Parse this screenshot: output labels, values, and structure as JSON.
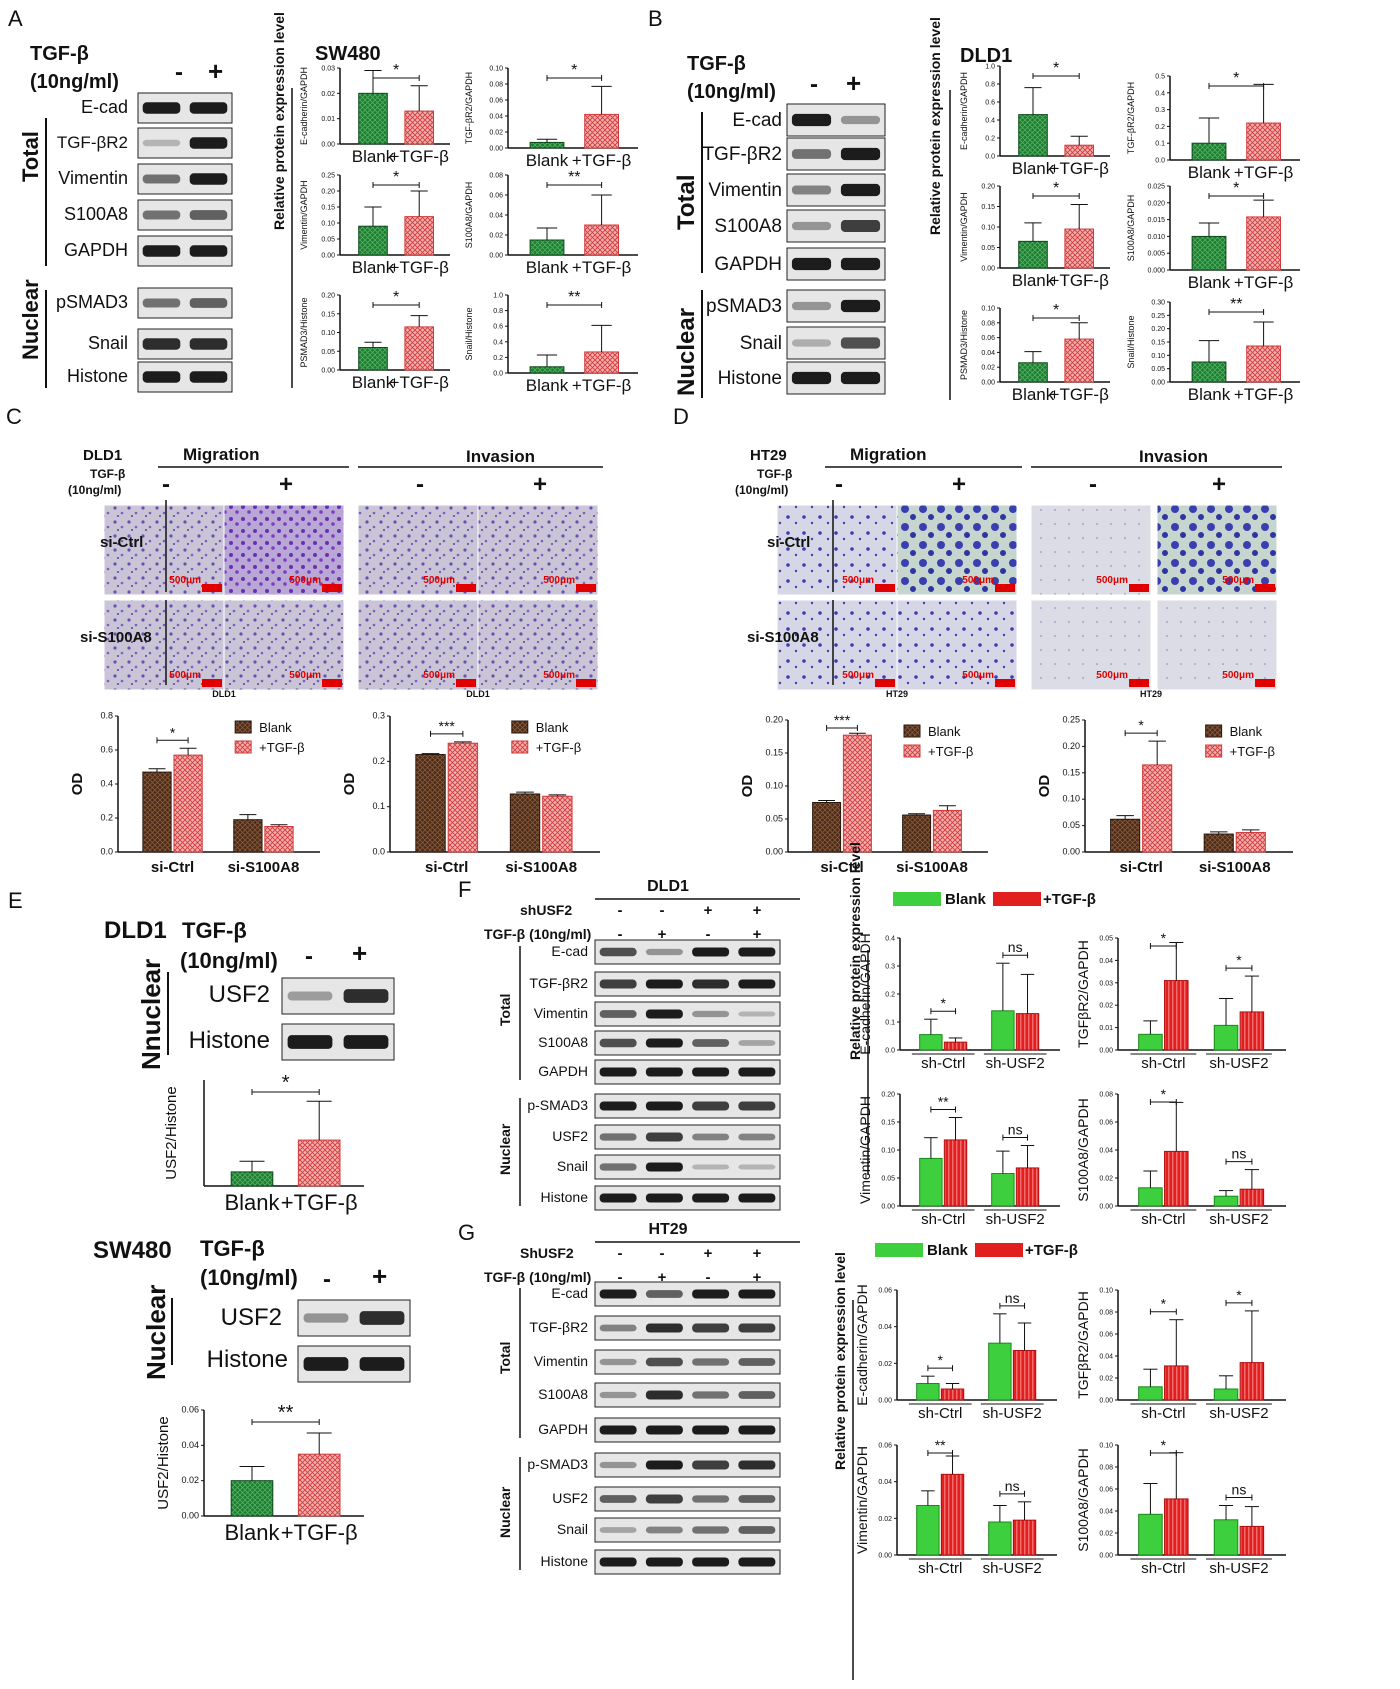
{
  "colors": {
    "blank_green": "#1f7a32",
    "tgf_red": "#e35a5a",
    "light_green": "#3ecf3e",
    "bright_red": "#e21f1f",
    "blank_brown": "#4a2c1a",
    "scale_red": "#e00000",
    "stain_purple": "#6a4fb5",
    "stain_blue": "#3a3fb0"
  },
  "panelA": {
    "label": "A",
    "treatment": "TGF-β",
    "dose": "(10ng/ml)",
    "minus": "-",
    "plus": "+",
    "group_total": "Total",
    "group_nuclear": "Nuclear",
    "blots": [
      "E-cad",
      "TGF-βR2",
      "Vimentin",
      "S100A8",
      "GAPDH",
      "pSMAD3",
      "Snail",
      "Histone"
    ],
    "cell_line": "SW480",
    "y_axis": "Relative protein expression level"
  },
  "panelB": {
    "label": "B",
    "treatment": "TGF-β",
    "dose": "(10ng/ml)",
    "minus": "-",
    "plus": "+",
    "group_total": "Total",
    "group_nuclear": "Nuclear",
    "blots": [
      "E-cad",
      "TGF-βR2",
      "Vimentin",
      "S100A8",
      "GAPDH",
      "pSMAD3",
      "Snail",
      "Histone"
    ],
    "cell_line": "DLD1",
    "y_axis": "Relative protein expression level"
  },
  "panelC": {
    "label": "C",
    "cell_line": "DLD1",
    "treatment": "TGF-β",
    "dose": "(10ng/ml)",
    "migration": "Migration",
    "invasion": "Invasion",
    "minus": "-",
    "plus": "+",
    "rows": [
      "si-Ctrl",
      "si-S100A8"
    ],
    "scale": "500μm",
    "caption": "DLD1"
  },
  "panelD": {
    "label": "D",
    "cell_line": "HT29",
    "treatment": "TGF-β",
    "dose": "(10ng/ml)",
    "migration": "Migration",
    "invasion": "Invasion",
    "minus": "-",
    "plus": "+",
    "rows": [
      "si-Ctrl",
      "si-S100A8"
    ],
    "scale": "500μm",
    "caption": "HT29"
  },
  "panelE": {
    "label": "E",
    "cell_line1": "DLD1",
    "cell_line2": "SW480",
    "treatment": "TGF-β",
    "dose": "(10ng/ml)",
    "minus": "-",
    "plus": "+",
    "group": "Nnuclear",
    "group2": "Nuclear",
    "blots": [
      "USF2",
      "Histone"
    ]
  },
  "panelF": {
    "label": "F",
    "cell_line": "DLD1",
    "sh_label": "shUSF2",
    "tgf_label": "TGF-β (10ng/ml)",
    "signs_sh": [
      "-",
      "-",
      "+",
      "+"
    ],
    "signs_tgf": [
      "-",
      "+",
      "-",
      "+"
    ],
    "group_total": "Total",
    "group_nuclear": "Nuclear",
    "blots": [
      "E-cad",
      "TGF-βR2",
      "Vimentin",
      "S100A8",
      "GAPDH",
      "p-SMAD3",
      "USF2",
      "Snail",
      "Histone"
    ],
    "legend_blank": "Blank",
    "legend_tgf": "+TGF-β",
    "y_axis": "Relative protein expression level"
  },
  "panelG": {
    "label": "G",
    "cell_line": "HT29",
    "sh_label": "ShUSF2",
    "tgf_label": "TGF-β (10ng/ml)",
    "signs_sh": [
      "-",
      "-",
      "+",
      "+"
    ],
    "signs_tgf": [
      "-",
      "+",
      "-",
      "+"
    ],
    "group_total": "Total",
    "group_nuclear": "Nuclear",
    "blots": [
      "E-cad",
      "TGF-βR2",
      "Vimentin",
      "S100A8",
      "GAPDH",
      "p-SMAD3",
      "USF2",
      "Snail",
      "Histone"
    ],
    "legend_blank": "Blank",
    "legend_tgf": "+TGF-β",
    "y_axis": "Relative protein expression level"
  },
  "chart_data": [
    {
      "id": "A-ecad",
      "type": "bar",
      "categories": [
        "Blank",
        "+TGF-β"
      ],
      "values": [
        0.02,
        0.013
      ],
      "errors": [
        0.009,
        0.01
      ],
      "ylabel": "E-cadherin/GAPDH",
      "ylim": [
        0,
        0.03
      ],
      "ticks": [
        "0.00",
        "0.01",
        "0.02",
        "0.03"
      ],
      "sig": "*"
    },
    {
      "id": "A-tgfbr2",
      "type": "bar",
      "categories": [
        "Blank",
        "+TGF-β"
      ],
      "values": [
        0.007,
        0.042
      ],
      "errors": [
        0.004,
        0.035
      ],
      "ylabel": "TGF-βR2/GAPDH",
      "ylim": [
        0,
        0.1
      ],
      "ticks": [
        "0.00",
        "0.02",
        "0.04",
        "0.06",
        "0.08",
        "0.10"
      ],
      "sig": "*"
    },
    {
      "id": "A-vim",
      "type": "bar",
      "categories": [
        "Blank",
        "+TGF-β"
      ],
      "values": [
        0.09,
        0.12
      ],
      "errors": [
        0.06,
        0.08
      ],
      "ylabel": "Vimentin/GAPDH",
      "ylim": [
        0,
        0.25
      ],
      "ticks": [
        "0.00",
        "0.05",
        "0.10",
        "0.15",
        "0.20",
        "0.25"
      ],
      "sig": "*"
    },
    {
      "id": "A-s100a8",
      "type": "bar",
      "categories": [
        "Blank",
        "+TGF-β"
      ],
      "values": [
        0.015,
        0.03
      ],
      "errors": [
        0.012,
        0.03
      ],
      "ylabel": "S100A8/GAPDH",
      "ylim": [
        0,
        0.08
      ],
      "ticks": [
        "0.00",
        "0.02",
        "0.04",
        "0.06",
        "0.08"
      ],
      "sig": "**"
    },
    {
      "id": "A-psmad3",
      "type": "bar",
      "categories": [
        "Blank",
        "+TGF-β"
      ],
      "values": [
        0.06,
        0.115
      ],
      "errors": [
        0.014,
        0.03
      ],
      "ylabel": "PSMAD3/Histone",
      "ylim": [
        0,
        0.2
      ],
      "ticks": [
        "0.00",
        "0.05",
        "0.10",
        "0.15",
        "0.20"
      ],
      "sig": "*"
    },
    {
      "id": "A-snail",
      "type": "bar",
      "categories": [
        "Blank",
        "+TGF-β"
      ],
      "values": [
        0.08,
        0.27
      ],
      "errors": [
        0.15,
        0.34
      ],
      "ylabel": "Snail/Histone",
      "ylim": [
        0,
        1.0
      ],
      "ticks": [
        "0.0",
        "0.2",
        "0.4",
        "0.6",
        "0.8",
        "1.0"
      ],
      "sig": "**"
    },
    {
      "id": "B-ecad",
      "type": "bar",
      "categories": [
        "Blank",
        "+TGF-β"
      ],
      "values": [
        0.46,
        0.12
      ],
      "errors": [
        0.3,
        0.1
      ],
      "ylabel": "E-cadherin/GAPDH",
      "ylim": [
        0,
        1.0
      ],
      "ticks": [
        "0.0",
        "0.2",
        "0.4",
        "0.6",
        "0.8",
        "1.0"
      ],
      "sig": "*"
    },
    {
      "id": "B-tgfbr2",
      "type": "bar",
      "categories": [
        "Blank",
        "+TGF-β"
      ],
      "values": [
        0.1,
        0.22
      ],
      "errors": [
        0.15,
        0.23
      ],
      "ylabel": "TGF-βR2/GAPDH",
      "ylim": [
        0,
        0.5
      ],
      "ticks": [
        "0.0",
        "0.1",
        "0.2",
        "0.3",
        "0.4",
        "0.5"
      ],
      "sig": "*"
    },
    {
      "id": "B-vim",
      "type": "bar",
      "categories": [
        "Blank",
        "+TGF-β"
      ],
      "values": [
        0.065,
        0.095
      ],
      "errors": [
        0.045,
        0.06
      ],
      "ylabel": "Vimentin/GAPDH",
      "ylim": [
        0,
        0.2
      ],
      "ticks": [
        "0.00",
        "0.05",
        "0.10",
        "0.15",
        "0.20"
      ],
      "sig": "*"
    },
    {
      "id": "B-s100a8",
      "type": "bar",
      "categories": [
        "Blank",
        "+TGF-β"
      ],
      "values": [
        0.01,
        0.0158
      ],
      "errors": [
        0.004,
        0.005
      ],
      "ylabel": "S100A8/GAPDH",
      "ylim": [
        0,
        0.025
      ],
      "ticks": [
        "0.000",
        "0.005",
        "0.010",
        "0.015",
        "0.020",
        "0.025"
      ],
      "sig": "*"
    },
    {
      "id": "B-psmad3",
      "type": "bar",
      "categories": [
        "Blank",
        "+TGF-β"
      ],
      "values": [
        0.026,
        0.058
      ],
      "errors": [
        0.015,
        0.022
      ],
      "ylabel": "PSMAD3/Histone",
      "ylim": [
        0,
        0.1
      ],
      "ticks": [
        "0.00",
        "0.02",
        "0.04",
        "0.06",
        "0.08",
        "0.10"
      ],
      "sig": "*"
    },
    {
      "id": "B-snail",
      "type": "bar",
      "categories": [
        "Blank",
        "+TGF-β"
      ],
      "values": [
        0.075,
        0.135
      ],
      "errors": [
        0.08,
        0.09
      ],
      "ylabel": "Snail/Histone",
      "ylim": [
        0,
        0.3
      ],
      "ticks": [
        "0.00",
        "0.05",
        "0.10",
        "0.15",
        "0.20",
        "0.25",
        "0.30"
      ],
      "sig": "**"
    },
    {
      "id": "C-mig",
      "type": "bar",
      "categories": [
        "si-Ctrl",
        "si-S100A8"
      ],
      "series": [
        {
          "name": "Blank",
          "values": [
            0.47,
            0.19
          ],
          "errors": [
            0.02,
            0.03
          ]
        },
        {
          "name": "+TGF-β",
          "values": [
            0.57,
            0.15
          ],
          "errors": [
            0.04,
            0.01
          ]
        }
      ],
      "ylabel": "OD",
      "ylim": [
        0,
        0.8
      ],
      "ticks": [
        "0.0",
        "0.2",
        "0.4",
        "0.6",
        "0.8"
      ],
      "sig": "*"
    },
    {
      "id": "C-inv",
      "type": "bar",
      "categories": [
        "si-Ctrl",
        "si-S100A8"
      ],
      "series": [
        {
          "name": "Blank",
          "values": [
            0.215,
            0.128
          ],
          "errors": [
            0.002,
            0.004
          ]
        },
        {
          "name": "+TGF-β",
          "values": [
            0.24,
            0.123
          ],
          "errors": [
            0.003,
            0.003
          ]
        }
      ],
      "ylabel": "OD",
      "ylim": [
        0,
        0.3
      ],
      "ticks": [
        "0.0",
        "0.1",
        "0.2",
        "0.3"
      ],
      "sig": "***"
    },
    {
      "id": "D-mig",
      "type": "bar",
      "categories": [
        "si-Ctrl",
        "si-S100A8"
      ],
      "series": [
        {
          "name": "Blank",
          "values": [
            0.075,
            0.056
          ],
          "errors": [
            0.003,
            0.002
          ]
        },
        {
          "name": "+TGF-β",
          "values": [
            0.177,
            0.063
          ],
          "errors": [
            0.003,
            0.007
          ]
        }
      ],
      "ylabel": "OD",
      "ylim": [
        0,
        0.2
      ],
      "ticks": [
        "0.00",
        "0.05",
        "0.10",
        "0.15",
        "0.20"
      ],
      "sig": "***"
    },
    {
      "id": "D-inv",
      "type": "bar",
      "categories": [
        "si-Ctrl",
        "si-S100A8"
      ],
      "series": [
        {
          "name": "Blank",
          "values": [
            0.062,
            0.034
          ],
          "errors": [
            0.007,
            0.004
          ]
        },
        {
          "name": "+TGF-β",
          "values": [
            0.165,
            0.037
          ],
          "errors": [
            0.045,
            0.005
          ]
        }
      ],
      "ylabel": "OD",
      "ylim": [
        0,
        0.25
      ],
      "ticks": [
        "0.00",
        "0.05",
        "0.10",
        "0.15",
        "0.20",
        "0.25"
      ],
      "sig": "*"
    },
    {
      "id": "E-dld1",
      "type": "bar",
      "categories": [
        "Blank",
        "+TGF-β"
      ],
      "values": [
        0.08,
        0.26
      ],
      "errors": [
        0.06,
        0.22
      ],
      "ylabel": "USF2/Histone",
      "ylim": [
        0,
        0.6
      ],
      "ticks": [],
      "sig": "*"
    },
    {
      "id": "E-sw480",
      "type": "bar",
      "categories": [
        "Blank",
        "+TGF-β"
      ],
      "values": [
        0.02,
        0.035
      ],
      "errors": [
        0.008,
        0.012
      ],
      "ylabel": "USF2/Histone",
      "ylim": [
        0,
        0.06
      ],
      "ticks": [
        "0.00",
        "0.02",
        "0.04",
        "0.06"
      ],
      "sig": "**"
    },
    {
      "id": "F-ecad",
      "type": "bar",
      "categories": [
        "sh-Ctrl",
        "sh-USF2"
      ],
      "series": [
        {
          "name": "Blank",
          "values": [
            0.055,
            0.14
          ],
          "errors": [
            0.055,
            0.17
          ]
        },
        {
          "name": "+TGF-β",
          "values": [
            0.028,
            0.13
          ],
          "errors": [
            0.015,
            0.14
          ]
        }
      ],
      "ylabel": "E-cadherin/GAPDH",
      "ylim": [
        0,
        0.4
      ],
      "ticks": [
        "0.0",
        "0.1",
        "0.2",
        "0.3",
        "0.4"
      ],
      "sig": [
        "*",
        "ns"
      ]
    },
    {
      "id": "F-tgfbr2",
      "type": "bar",
      "categories": [
        "sh-Ctrl",
        "sh-USF2"
      ],
      "series": [
        {
          "name": "Blank",
          "values": [
            0.007,
            0.011
          ],
          "errors": [
            0.006,
            0.012
          ]
        },
        {
          "name": "+TGF-β",
          "values": [
            0.031,
            0.017
          ],
          "errors": [
            0.017,
            0.016
          ]
        }
      ],
      "ylabel": "TGFβR2/GAPDH",
      "ylim": [
        0,
        0.05
      ],
      "ticks": [
        "0.00",
        "0.01",
        "0.02",
        "0.03",
        "0.04",
        "0.05"
      ],
      "sig": [
        "*",
        "*"
      ]
    },
    {
      "id": "F-vim",
      "type": "bar",
      "categories": [
        "sh-Ctrl",
        "sh-USF2"
      ],
      "series": [
        {
          "name": "Blank",
          "values": [
            0.085,
            0.058
          ],
          "errors": [
            0.037,
            0.04
          ]
        },
        {
          "name": "+TGF-β",
          "values": [
            0.118,
            0.068
          ],
          "errors": [
            0.04,
            0.04
          ]
        }
      ],
      "ylabel": "Vimentin/GAPDH",
      "ylim": [
        0,
        0.2
      ],
      "ticks": [
        "0.00",
        "0.05",
        "0.10",
        "0.15",
        "0.20"
      ],
      "sig": [
        "**",
        "ns"
      ]
    },
    {
      "id": "F-s100a8",
      "type": "bar",
      "categories": [
        "sh-Ctrl",
        "sh-USF2"
      ],
      "series": [
        {
          "name": "Blank",
          "values": [
            0.013,
            0.007
          ],
          "errors": [
            0.012,
            0.004
          ]
        },
        {
          "name": "+TGF-β",
          "values": [
            0.039,
            0.012
          ],
          "errors": [
            0.035,
            0.014
          ]
        }
      ],
      "ylabel": "S100A8/GAPDH",
      "ylim": [
        0,
        0.08
      ],
      "ticks": [
        "0.00",
        "0.02",
        "0.04",
        "0.06",
        "0.08"
      ],
      "sig": [
        "*",
        "ns"
      ]
    },
    {
      "id": "G-ecad",
      "type": "bar",
      "categories": [
        "sh-Ctrl",
        "sh-USF2"
      ],
      "series": [
        {
          "name": "Blank",
          "values": [
            0.009,
            0.031
          ]
        },
        {
          "name": "+TGF-β",
          "values": [
            0.006,
            0.027
          ]
        }
      ],
      "errors": [
        [
          0.004,
          0.016
        ],
        [
          0.003,
          0.015
        ]
      ],
      "ylabel": "E-cadherin/GAPDH",
      "ylim": [
        0,
        0.06
      ],
      "ticks": [
        "0.00",
        "0.02",
        "0.04",
        "0.06"
      ],
      "sig": [
        "*",
        "ns"
      ]
    },
    {
      "id": "G-tgfbr2",
      "type": "bar",
      "categories": [
        "sh-Ctrl",
        "sh-USF2"
      ],
      "series": [
        {
          "name": "Blank",
          "values": [
            0.012,
            0.01
          ]
        },
        {
          "name": "+TGF-β",
          "values": [
            0.031,
            0.034
          ]
        }
      ],
      "errors": [
        [
          0.016,
          0.012
        ],
        [
          0.042,
          0.047
        ]
      ],
      "ylabel": "TGFβR2/GAPDH",
      "ylim": [
        0,
        0.1
      ],
      "ticks": [
        "0.00",
        "0.02",
        "0.04",
        "0.06",
        "0.08",
        "0.10"
      ],
      "sig": [
        "*",
        "*"
      ]
    },
    {
      "id": "G-vim",
      "type": "bar",
      "categories": [
        "sh-Ctrl",
        "sh-USF2"
      ],
      "series": [
        {
          "name": "Blank",
          "values": [
            0.027,
            0.018
          ]
        },
        {
          "name": "+TGF-β",
          "values": [
            0.044,
            0.019
          ]
        }
      ],
      "errors": [
        [
          0.008,
          0.009
        ],
        [
          0.01,
          0.01
        ]
      ],
      "ylabel": "Vimentin/GAPDH",
      "ylim": [
        0,
        0.06
      ],
      "ticks": [
        "0.00",
        "0.02",
        "0.04",
        "0.06"
      ],
      "sig": [
        "**",
        "ns"
      ]
    },
    {
      "id": "G-s100a8",
      "type": "bar",
      "categories": [
        "sh-Ctrl",
        "sh-USF2"
      ],
      "series": [
        {
          "name": "Blank",
          "values": [
            0.037,
            0.032
          ]
        },
        {
          "name": "+TGF-β",
          "values": [
            0.051,
            0.026
          ]
        }
      ],
      "errors": [
        [
          0.028,
          0.013
        ],
        [
          0.042,
          0.018
        ]
      ],
      "ylabel": "S100A8/GAPDH",
      "ylim": [
        0,
        0.1
      ],
      "ticks": [
        "0.00",
        "0.02",
        "0.04",
        "0.06",
        "0.08",
        "0.10"
      ],
      "sig": [
        "*",
        "ns"
      ]
    }
  ]
}
